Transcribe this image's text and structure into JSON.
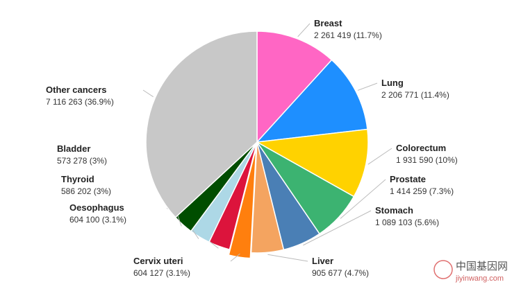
{
  "chart_data": {
    "type": "pie",
    "categories": [
      "Breast",
      "Lung",
      "Colorectum",
      "Prostate",
      "Stomach",
      "Liver",
      "Cervix uteri",
      "Oesophagus",
      "Thyroid",
      "Bladder",
      "Other cancers"
    ],
    "values": [
      2261419,
      2206771,
      1931590,
      1414259,
      1089103,
      905677,
      604127,
      604100,
      586202,
      573278,
      7116263
    ],
    "value_labels": [
      "2 261 419 (11.7%)",
      "2 206 771 (11.4%)",
      "1 931 590 (10%)",
      "1 414 259 (7.3%)",
      "1 089 103 (5.6%)",
      "905 677 (4.7%)",
      "604 127 (3.1%)",
      "604 100 (3.1%)",
      "586 202 (3%)",
      "573 278 (3%)",
      "7 116 263 (36.9%)"
    ],
    "colors": [
      "#ff66c4",
      "#1e8fff",
      "#ffd200",
      "#3cb371",
      "#4a7fb5",
      "#f4a460",
      "#ff7f0e",
      "#dc143c",
      "#add8e6",
      "#004d00",
      "#c8c8c8"
    ]
  },
  "watermark": {
    "name": "中国基因网",
    "url": "jiyinwang.com"
  }
}
